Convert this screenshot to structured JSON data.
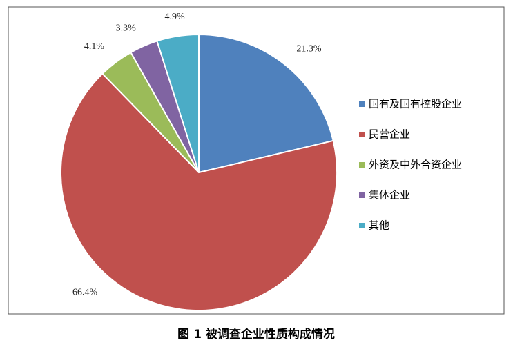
{
  "chart_data": {
    "type": "pie",
    "title": "图 1 被调查企业性质构成情况",
    "categories": [
      "国有及国有控股企业",
      "民营企业",
      "外资及中外合资企业",
      "集体企业",
      "其他"
    ],
    "values": [
      21.3,
      66.4,
      4.1,
      3.3,
      4.9
    ],
    "value_labels": [
      "21.3%",
      "66.4%",
      "4.1%",
      "3.3%",
      "4.9%"
    ],
    "colors": [
      "#4f81bd",
      "#c0504d",
      "#9bbb59",
      "#8064a2",
      "#4bacc6"
    ],
    "legend": "right"
  }
}
